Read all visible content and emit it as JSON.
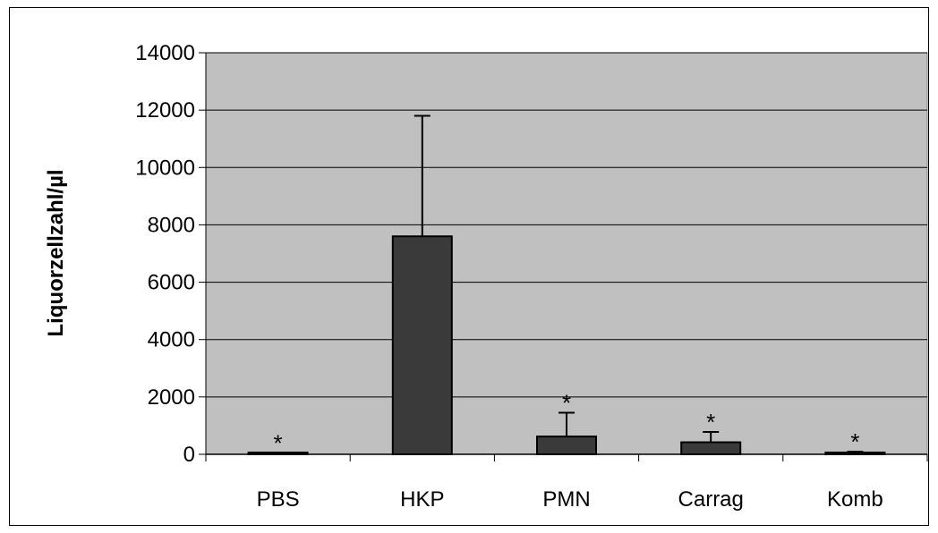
{
  "chart_data": {
    "type": "bar",
    "ylabel": "Liquorzellzahl/µl",
    "xlabel": "",
    "title": "",
    "ylim": [
      0,
      14000
    ],
    "yticks": [
      0,
      2000,
      4000,
      6000,
      8000,
      10000,
      12000,
      14000
    ],
    "categories": [
      "PBS",
      "HKP",
      "PMN",
      "Carrag",
      "Komb"
    ],
    "values": [
      40,
      7600,
      620,
      420,
      60
    ],
    "error_upper": [
      40,
      11800,
      1450,
      780,
      90
    ],
    "annotations": [
      "*",
      "",
      "*",
      "*",
      "*"
    ],
    "grid": true,
    "legend": "none",
    "colors": {
      "plot_bg": "#c0c0c0",
      "bar": "#3a3a3a",
      "grid": "#000000"
    }
  }
}
